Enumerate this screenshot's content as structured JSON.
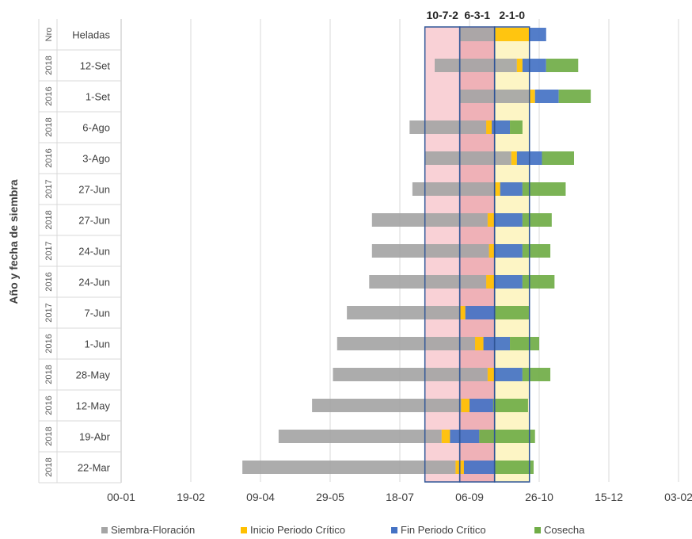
{
  "chart_data": {
    "type": "bar",
    "orientation": "horizontal",
    "stacked": true,
    "ylabel": "Año y fecha de siembra",
    "xlabel": "",
    "x_tick_labels": [
      "00-01",
      "19-02",
      "09-04",
      "29-05",
      "18-07",
      "06-09",
      "26-10",
      "15-12",
      "03-02"
    ],
    "x_tick_values": [
      0,
      50,
      100,
      150,
      200,
      250,
      300,
      350,
      400
    ],
    "xlim": [
      0,
      400
    ],
    "grid": "vertical",
    "legend_position": "bottom",
    "legend": [
      {
        "label": "Siembra-Floración",
        "color": "#a5a5a5"
      },
      {
        "label": "Inicio Periodo Crítico",
        "color": "#ffc000"
      },
      {
        "label": "Fin Periodo Crítico",
        "color": "#4472c4"
      },
      {
        "label": "Cosecha",
        "color": "#70ad47"
      }
    ],
    "frost_bands": [
      {
        "label": "10-7-2",
        "start": 218,
        "end": 243,
        "color": "#f9d1d6"
      },
      {
        "label": "6-3-1",
        "start": 243,
        "end": 268,
        "color": "#efb1b7"
      },
      {
        "label": "2-1-0",
        "start": 268,
        "end": 293,
        "color": "#fdf5c5"
      }
    ],
    "header_row": {
      "year": "Nro",
      "date": "Heladas"
    },
    "rows": [
      {
        "year": "2018",
        "date": "12-Set",
        "segments": [
          [
            225,
            268,
            "siembra"
          ],
          [
            268,
            284,
            "siembra"
          ],
          [
            284,
            288,
            "inicio"
          ],
          [
            288,
            305,
            "fin"
          ],
          [
            305,
            328,
            "cosecha"
          ]
        ]
      },
      {
        "year": "2016",
        "date": "1-Set",
        "segments": [
          [
            243,
            268,
            "siembra"
          ],
          [
            268,
            293,
            "siembra"
          ],
          [
            293,
            297,
            "inicio"
          ],
          [
            297,
            314,
            "fin"
          ],
          [
            314,
            337,
            "cosecha"
          ]
        ]
      },
      {
        "year": "2018",
        "date": "6-Ago",
        "segments": [
          [
            207,
            262,
            "siembra"
          ],
          [
            262,
            266,
            "inicio"
          ],
          [
            266,
            279,
            "fin"
          ],
          [
            279,
            288,
            "cosecha"
          ]
        ]
      },
      {
        "year": "2016",
        "date": "3-Ago",
        "segments": [
          [
            218,
            280,
            "siembra"
          ],
          [
            280,
            284,
            "inicio"
          ],
          [
            284,
            302,
            "fin"
          ],
          [
            302,
            325,
            "cosecha"
          ]
        ]
      },
      {
        "year": "2017",
        "date": "27-Jun",
        "segments": [
          [
            209,
            268,
            "siembra"
          ],
          [
            268,
            272,
            "inicio"
          ],
          [
            272,
            288,
            "fin"
          ],
          [
            288,
            319,
            "cosecha"
          ]
        ]
      },
      {
        "year": "2018",
        "date": "27-Jun",
        "segments": [
          [
            180,
            263,
            "siembra"
          ],
          [
            263,
            268,
            "inicio"
          ],
          [
            268,
            288,
            "fin"
          ],
          [
            288,
            309,
            "cosecha"
          ]
        ]
      },
      {
        "year": "2017",
        "date": "24-Jun",
        "segments": [
          [
            180,
            264,
            "siembra"
          ],
          [
            264,
            268,
            "inicio"
          ],
          [
            268,
            288,
            "fin"
          ],
          [
            288,
            308,
            "cosecha"
          ]
        ]
      },
      {
        "year": "2016",
        "date": "24-Jun",
        "segments": [
          [
            178,
            262,
            "siembra"
          ],
          [
            262,
            268,
            "inicio"
          ],
          [
            268,
            288,
            "fin"
          ],
          [
            288,
            311,
            "cosecha"
          ]
        ]
      },
      {
        "year": "2017",
        "date": "7-Jun",
        "segments": [
          [
            162,
            243,
            "siembra"
          ],
          [
            243,
            247,
            "inicio"
          ],
          [
            247,
            268,
            "fin"
          ],
          [
            268,
            293,
            "cosecha"
          ]
        ]
      },
      {
        "year": "2016",
        "date": "1-Jun",
        "segments": [
          [
            155,
            254,
            "siembra"
          ],
          [
            254,
            260,
            "inicio"
          ],
          [
            260,
            279,
            "fin"
          ],
          [
            279,
            300,
            "cosecha"
          ]
        ]
      },
      {
        "year": "2018",
        "date": "28-May",
        "segments": [
          [
            152,
            263,
            "siembra"
          ],
          [
            263,
            268,
            "inicio"
          ],
          [
            268,
            288,
            "fin"
          ],
          [
            288,
            308,
            "cosecha"
          ]
        ]
      },
      {
        "year": "2016",
        "date": "12-May",
        "segments": [
          [
            137,
            244,
            "siembra"
          ],
          [
            244,
            250,
            "inicio"
          ],
          [
            250,
            267,
            "fin"
          ],
          [
            267,
            292,
            "cosecha"
          ]
        ]
      },
      {
        "year": "2018",
        "date": "19-Abr",
        "segments": [
          [
            113,
            230,
            "siembra"
          ],
          [
            230,
            236,
            "inicio"
          ],
          [
            236,
            257,
            "fin"
          ],
          [
            257,
            297,
            "cosecha"
          ]
        ]
      },
      {
        "year": "2018",
        "date": "22-Mar",
        "segments": [
          [
            87,
            240,
            "siembra"
          ],
          [
            240,
            246,
            "inicio"
          ],
          [
            246,
            268,
            "fin"
          ],
          [
            268,
            296,
            "cosecha"
          ]
        ]
      }
    ],
    "frost_row": {
      "segments": [
        [
          243,
          268,
          "siembra"
        ],
        [
          268,
          293,
          "inicio"
        ],
        [
          293,
          305,
          "fin"
        ]
      ]
    }
  }
}
